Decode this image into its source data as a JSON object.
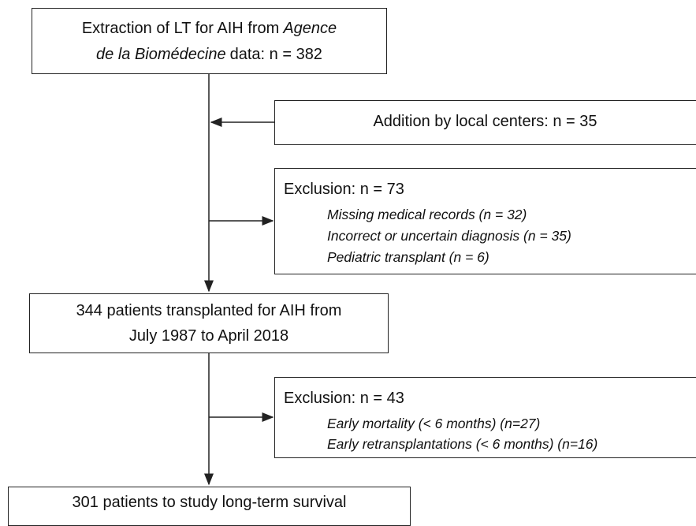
{
  "nodes": [
    {
      "lines": [
        [
          "Extraction of LT for AIH from",
          "Agence"
        ],
        [
          "de la Biomédecine",
          "data: n = 382"
        ]
      ]
    },
    {
      "lines": [
        [
          "Addition by local centers: n = 35"
        ]
      ]
    },
    {
      "title": "Exclusion: n = 73",
      "items": [
        "Missing medical records (n = 32)",
        "Incorrect or uncertain diagnosis (n = 35)",
        "Pediatric transplant (n = 6)"
      ]
    },
    {
      "lines": [
        [
          "344 patients transplanted for AIH from"
        ],
        [
          "July 1987 to April 2018"
        ]
      ]
    },
    {
      "title": "Exclusion: n = 43",
      "items": [
        "Early mortality (< 6 months) (n=27)",
        "Early retransplantations (< 6 months) (n=16)"
      ]
    },
    {
      "lines": [
        [
          "301 patients to study long-term survival"
        ]
      ]
    }
  ]
}
